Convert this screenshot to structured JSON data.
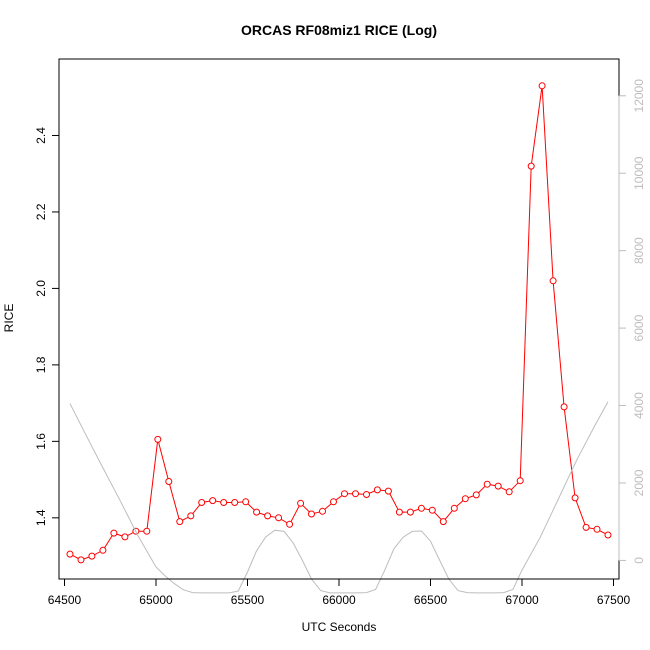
{
  "chart_data": {
    "type": "line",
    "title": "ORCAS RF08miz1 RICE (Log)",
    "xlabel": "UTC Seconds",
    "ylabel": "RICE",
    "y2label": "",
    "xlim": [
      64470,
      67530
    ],
    "ylim": [
      1.24,
      2.6
    ],
    "y2lim": [
      -480,
      12950
    ],
    "x_ticks": [
      64500,
      65000,
      65500,
      66000,
      66500,
      67000,
      67500
    ],
    "y_ticks": [
      1.4,
      1.6,
      1.8,
      2.0,
      2.2,
      2.4
    ],
    "y2_ticks": [
      0,
      2000,
      4000,
      6000,
      8000,
      10000,
      12000
    ],
    "grid": false,
    "legend": "none",
    "colors": {
      "rice": "#ff0000",
      "altitude": "#bdbdbd"
    },
    "series": [
      {
        "axis": "left",
        "style": "line-points",
        "x": [
          64530,
          64590,
          64650,
          64710,
          64770,
          64830,
          64890,
          64950,
          65010,
          65070,
          65130,
          65190,
          65250,
          65310,
          65370,
          65430,
          65490,
          65550,
          65610,
          65670,
          65730,
          65790,
          65850,
          65910,
          65970,
          66030,
          66090,
          66150,
          66210,
          66270,
          66330,
          66390,
          66450,
          66510,
          66570,
          66630,
          66690,
          66750,
          66810,
          66870,
          66930,
          66990,
          67050,
          67110,
          67170,
          67230,
          67290,
          67350,
          67410,
          67470
        ],
        "y": [
          1.305,
          1.29,
          1.3,
          1.315,
          1.36,
          1.35,
          1.365,
          1.365,
          1.605,
          1.495,
          1.39,
          1.405,
          1.44,
          1.445,
          1.44,
          1.44,
          1.442,
          1.415,
          1.405,
          1.4,
          1.383,
          1.438,
          1.41,
          1.417,
          1.442,
          1.463,
          1.463,
          1.461,
          1.473,
          1.47,
          1.415,
          1.415,
          1.425,
          1.42,
          1.39,
          1.425,
          1.45,
          1.46,
          1.488,
          1.483,
          1.468,
          1.497,
          2.32,
          2.53,
          2.02,
          1.69,
          1.452,
          1.375,
          1.37,
          1.355
        ]
      },
      {
        "axis": "right",
        "style": "line",
        "x": [
          64530,
          64600,
          64700,
          64800,
          64900,
          65000,
          65050,
          65100,
          65150,
          65200,
          65250,
          65300,
          65350,
          65400,
          65450,
          65500,
          65550,
          65600,
          65650,
          65700,
          65750,
          65800,
          65850,
          65900,
          65950,
          66000,
          66050,
          66100,
          66150,
          66200,
          66250,
          66300,
          66350,
          66400,
          66450,
          66500,
          66550,
          66600,
          66650,
          66700,
          66750,
          66800,
          66850,
          66900,
          66950,
          67000,
          67100,
          67200,
          67300,
          67400,
          67470
        ],
        "y": [
          4050,
          3400,
          2480,
          1580,
          650,
          -170,
          -400,
          -600,
          -760,
          -830,
          -840,
          -840,
          -840,
          -840,
          -790,
          -300,
          250,
          610,
          780,
          750,
          450,
          0,
          -480,
          -780,
          -840,
          -840,
          -840,
          -840,
          -830,
          -750,
          -250,
          300,
          600,
          750,
          760,
          500,
          0,
          -480,
          -780,
          -830,
          -840,
          -840,
          -840,
          -830,
          -750,
          -250,
          600,
          1600,
          2600,
          3500,
          4100
        ]
      }
    ]
  }
}
